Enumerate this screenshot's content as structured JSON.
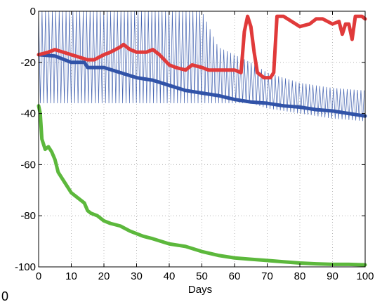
{
  "chart_data": {
    "type": "line",
    "title": "",
    "xlabel": "Days",
    "ylabel": "",
    "xlim": [
      0,
      100
    ],
    "ylim": [
      -100,
      0
    ],
    "xticks": [
      0,
      10,
      20,
      30,
      40,
      50,
      60,
      70,
      80,
      90,
      100
    ],
    "yticks": [
      0,
      -20,
      -40,
      -60,
      -80,
      -100
    ],
    "grid": true,
    "legend": "none",
    "corner_mark": "0",
    "series": [
      {
        "color": "#3153a8",
        "style": "oscillating-thin",
        "envelope": {
          "days": [
            0,
            20,
            40,
            50,
            55,
            60,
            65,
            70,
            80,
            90,
            100
          ],
          "upper": [
            0,
            0,
            0,
            0,
            -14,
            -17,
            -20,
            -24,
            -28,
            -30,
            -31
          ],
          "lower": [
            -36,
            -36,
            -36,
            -36,
            -36,
            -36,
            -36,
            -38,
            -40,
            -42,
            -43
          ]
        }
      },
      {
        "color": "#3153a8",
        "style": "thick",
        "x": [
          0,
          5,
          8,
          10,
          14,
          15,
          20,
          25,
          30,
          35,
          40,
          45,
          50,
          55,
          60,
          65,
          70,
          75,
          80,
          85,
          90,
          95,
          100
        ],
        "y": [
          -17,
          -17.5,
          -19,
          -20,
          -20,
          -22,
          -22,
          -24,
          -26,
          -27,
          -29,
          -31,
          -32,
          -33,
          -34.5,
          -35.5,
          -36,
          -37,
          -37.5,
          -38.5,
          -39,
          -40,
          -41
        ]
      },
      {
        "color": "#e03a3a",
        "style": "thick",
        "x": [
          0,
          3,
          5,
          10,
          15,
          17,
          20,
          22,
          25,
          26,
          28,
          30,
          33,
          35,
          37,
          40,
          42,
          45,
          47,
          50,
          52,
          55,
          58,
          60,
          62,
          63,
          64,
          65,
          66,
          67,
          69,
          70,
          71,
          72,
          73,
          75,
          80,
          83,
          85,
          87,
          90,
          92,
          93,
          94,
          95,
          96,
          97,
          99,
          100
        ],
        "y": [
          -17,
          -16,
          -15,
          -17,
          -19,
          -19,
          -17,
          -16,
          -14,
          -13,
          -15,
          -16,
          -16,
          -15,
          -17,
          -21,
          -22,
          -23,
          -21,
          -22,
          -23,
          -23,
          -23,
          -23,
          -24,
          -8,
          -2,
          -6,
          -16,
          -24,
          -26,
          -26,
          -26,
          -24,
          -2,
          -2,
          -6,
          -5,
          -3,
          -3,
          -5,
          -4,
          -9,
          -5,
          -5,
          -11,
          -2,
          -2,
          -3
        ]
      },
      {
        "color": "#5cb83c",
        "style": "thick",
        "x": [
          0,
          0.5,
          1,
          2,
          3,
          4,
          5,
          6,
          8,
          10,
          12,
          14,
          15,
          16,
          18,
          20,
          22,
          25,
          28,
          30,
          32,
          35,
          40,
          45,
          50,
          55,
          60,
          65,
          70,
          75,
          80,
          85,
          90,
          95,
          100
        ],
        "y": [
          -37,
          -40,
          -50,
          -54,
          -53,
          -55,
          -58,
          -63,
          -67,
          -71,
          -73,
          -75,
          -78,
          -79,
          -80,
          -82,
          -83,
          -84,
          -86,
          -87,
          -88,
          -89,
          -91,
          -92,
          -94,
          -95.5,
          -96.5,
          -97,
          -97.5,
          -98,
          -98.5,
          -98.8,
          -99,
          -99,
          -99.2
        ]
      }
    ]
  }
}
